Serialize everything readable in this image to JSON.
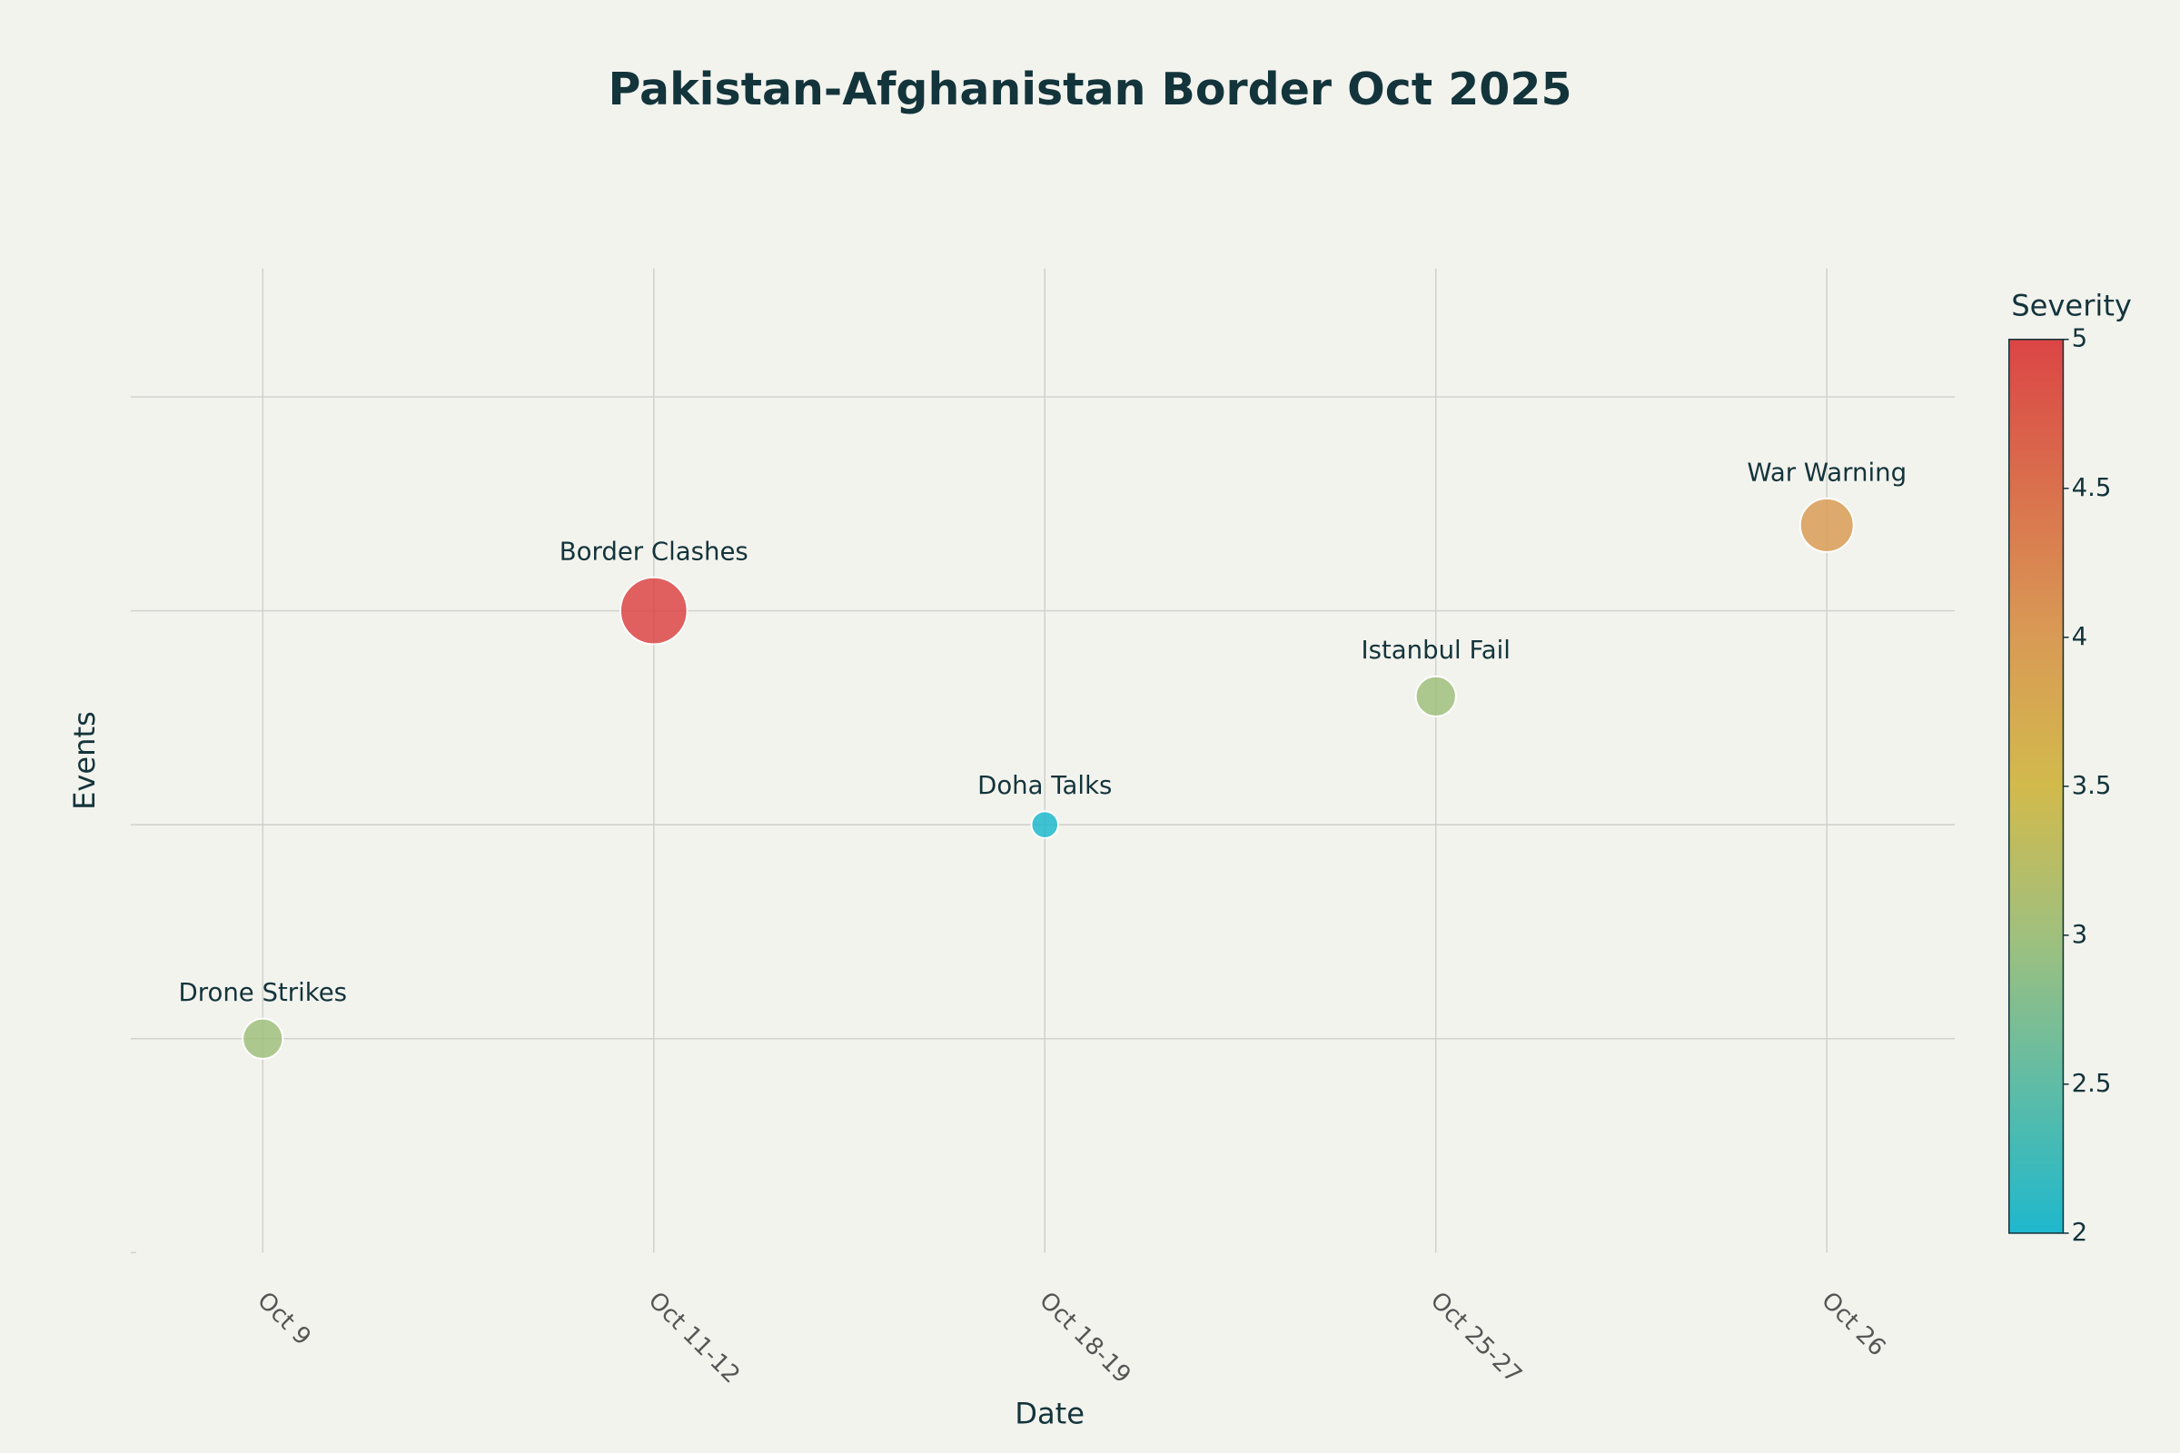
{
  "chart_data": {
    "type": "scatter",
    "title": "Pakistan-Afghanistan Border Oct 2025",
    "x_label": "Date",
    "y_label": "Events",
    "categories": [
      "Oct 9",
      "Oct 11-12",
      "Oct 18-19",
      "Oct 25-27",
      "Oct 26"
    ],
    "values": [
      1,
      3,
      2,
      2.6,
      3.4
    ],
    "text_labels": [
      "Drone Strikes",
      "Border Clashes",
      "Doha Talks",
      "Istanbul Fail",
      "War Warning"
    ],
    "severity": [
      3,
      5,
      2,
      3,
      4
    ],
    "ylim": [
      0,
      4.6
    ],
    "yticks": [
      0,
      1,
      2,
      3,
      4
    ],
    "grid": true,
    "colorbar": {
      "title": "Severity",
      "clim": [
        2,
        5
      ],
      "ticks": [
        2,
        2.5,
        3,
        3.5,
        4,
        4.5,
        5
      ],
      "colorscale": [
        [
          0,
          "#1FB8CD"
        ],
        [
          0.33,
          "#9FC07E"
        ],
        [
          0.5,
          "#D2BA4C"
        ],
        [
          0.67,
          "#D99A55"
        ],
        [
          1,
          "#DB4545"
        ]
      ]
    }
  }
}
